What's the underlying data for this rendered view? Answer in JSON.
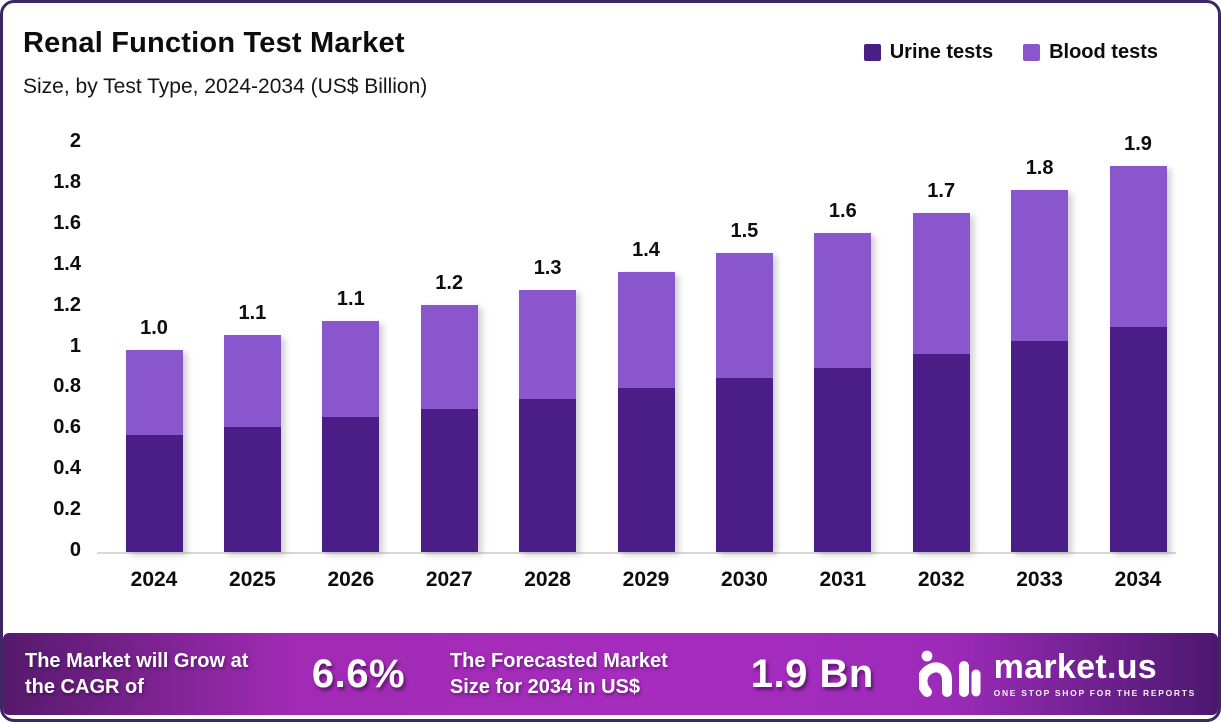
{
  "header": {
    "title": "Renal Function Test Market",
    "subtitle": "Size, by Test Type, 2024-2034 (US$ Billion)"
  },
  "chart_data": {
    "type": "bar",
    "stacked": true,
    "title": "Renal Function Test Market",
    "subtitle": "Size, by Test Type, 2024-2034 (US$ Billion)",
    "categories": [
      "2024",
      "2025",
      "2026",
      "2027",
      "2028",
      "2029",
      "2030",
      "2031",
      "2032",
      "2033",
      "2034"
    ],
    "series": [
      {
        "name": "Urine tests",
        "color": "#4a1d87",
        "values": [
          0.57,
          0.61,
          0.66,
          0.7,
          0.75,
          0.8,
          0.85,
          0.9,
          0.97,
          1.03,
          1.1
        ]
      },
      {
        "name": "Blood tests",
        "color": "#8a56cd",
        "values": [
          0.42,
          0.45,
          0.47,
          0.51,
          0.53,
          0.57,
          0.61,
          0.66,
          0.69,
          0.74,
          0.79
        ]
      }
    ],
    "total_labels": [
      "1.0",
      "1.1",
      "1.1",
      "1.2",
      "1.3",
      "1.4",
      "1.5",
      "1.6",
      "1.7",
      "1.8",
      "1.9"
    ],
    "y_ticks": [
      2,
      1.8,
      1.6,
      1.4,
      1.2,
      1,
      0.8,
      0.6,
      0.4,
      0.2,
      0
    ],
    "y_tick_labels": [
      "2",
      "1.8",
      "1.6",
      "1.4",
      "1.2",
      "1",
      "0.8",
      "0.6",
      "0.4",
      "0.2",
      "0"
    ],
    "ylim": [
      0,
      2
    ],
    "xlabel": "",
    "ylabel": "",
    "grid": false,
    "legend_position": "top-right"
  },
  "banner": {
    "cagr_label": "The Market will Grow at the CAGR of",
    "cagr_value": "6.6%",
    "forecast_label": "The Forecasted Market Size for 2034 in US$",
    "forecast_value": "1.9 Bn",
    "brand": "market.us",
    "brand_tagline": "ONE STOP SHOP FOR THE REPORTS"
  },
  "colors": {
    "urine": "#4a1d87",
    "blood": "#8a56cd",
    "card_border": "#3d2763",
    "baseline": "#d8d8d8"
  }
}
